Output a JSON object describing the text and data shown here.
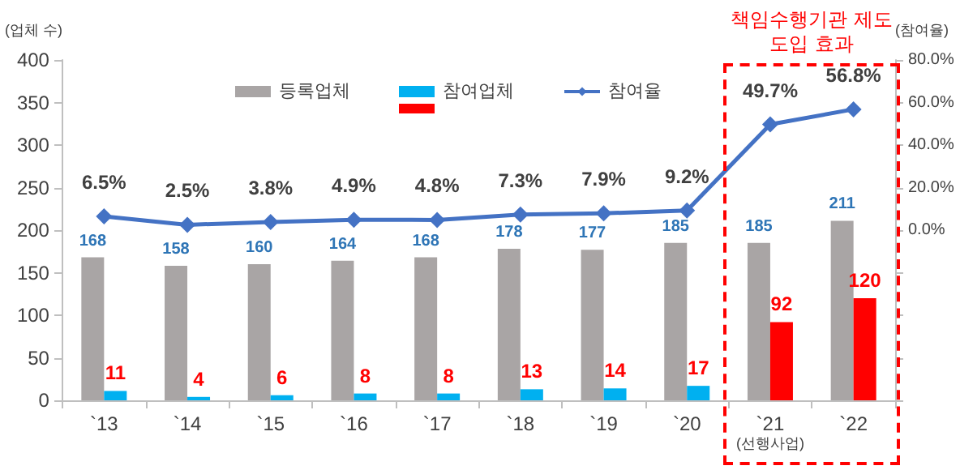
{
  "chart_data": {
    "type": "bar",
    "ylabel": "(업체 수)",
    "y2label": "(참여율)",
    "categories": [
      "`13",
      "`14",
      "`15",
      "`16",
      "`17",
      "`18",
      "`19",
      "`20",
      "`21\n(선행사업)",
      "`22"
    ],
    "series": [
      {
        "name": "등록업체",
        "color": "#a9a5a5",
        "values": [
          168,
          158,
          160,
          164,
          168,
          178,
          177,
          185,
          185,
          211
        ]
      },
      {
        "name": "참여업체",
        "color": "#00b0f0",
        "colors": [
          "#00b0f0",
          "#00b0f0",
          "#00b0f0",
          "#00b0f0",
          "#00b0f0",
          "#00b0f0",
          "#00b0f0",
          "#00b0f0",
          "#ff0000",
          "#ff0000"
        ],
        "values": [
          11,
          4,
          6,
          8,
          8,
          13,
          14,
          17,
          92,
          120
        ]
      },
      {
        "name": "참여율",
        "type": "line",
        "axis": "y2",
        "color": "#4472c4",
        "marker": "diamond",
        "values": [
          6.5,
          2.5,
          3.8,
          4.9,
          4.8,
          7.3,
          7.9,
          9.2,
          49.7,
          56.8
        ],
        "value_labels": [
          "6.5%",
          "2.5%",
          "3.8%",
          "4.9%",
          "4.8%",
          "7.3%",
          "7.9%",
          "9.2%",
          "49.7%",
          "56.8%"
        ]
      }
    ],
    "ylim": [
      0,
      400
    ],
    "yticks": [
      0,
      50,
      100,
      150,
      200,
      250,
      300,
      350,
      400
    ],
    "y2lim": [
      -80,
      80
    ],
    "y2ticks": [
      {
        "value": -80,
        "label": null
      },
      {
        "value": -60,
        "label": null
      },
      {
        "value": -40,
        "label": null
      },
      {
        "value": -20,
        "label": null
      },
      {
        "value": 0,
        "label": "0.0%"
      },
      {
        "value": 20,
        "label": "20.0%"
      },
      {
        "value": 40,
        "label": "40.0%"
      },
      {
        "value": 60,
        "label": "60.0%"
      },
      {
        "value": 80,
        "label": "80.0%"
      }
    ],
    "data_labels": true,
    "legend": "top",
    "grid": false,
    "annotations": [
      "책임수행기관 제도\n도입 효과"
    ]
  }
}
